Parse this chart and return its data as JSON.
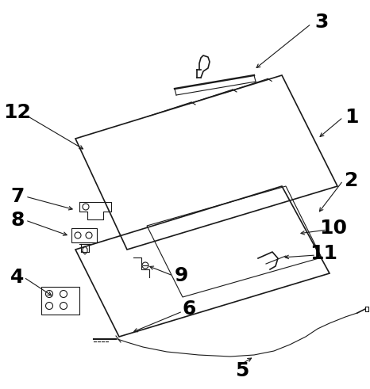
{
  "background_color": "#ffffff",
  "line_color": "#1a1a1a",
  "label_color": "#000000",
  "label_fontsize": 18,
  "figsize": [
    4.66,
    4.91
  ],
  "dpi": 100
}
